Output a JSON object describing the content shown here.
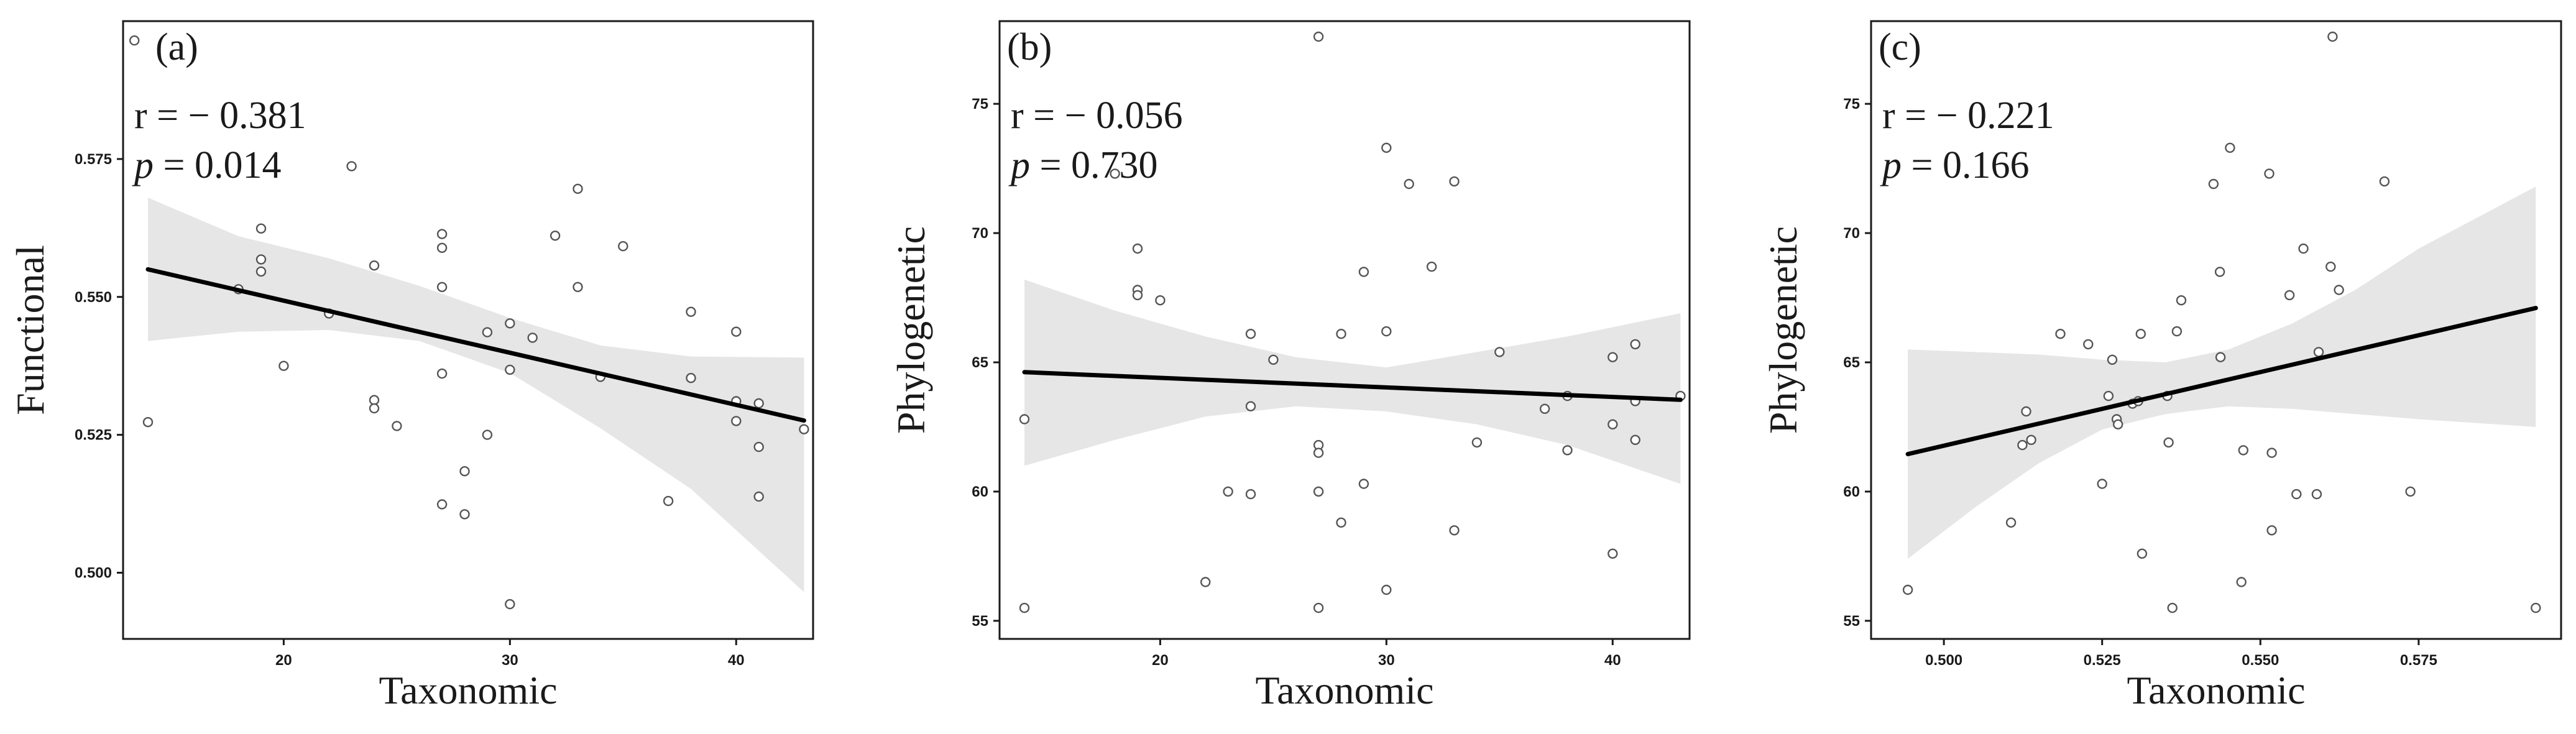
{
  "chart_data": [
    {
      "type": "scatter",
      "panel_label": "(a)",
      "xlabel": "Taxonomic",
      "ylabel": "Functional",
      "xlim": [
        12.9,
        43.4
      ],
      "ylim": [
        0.488,
        0.6
      ],
      "xticks": [
        20,
        30,
        40
      ],
      "xtick_labels": [
        "20",
        "30",
        "40"
      ],
      "yticks": [
        0.5,
        0.525,
        0.55,
        0.575
      ],
      "ytick_labels": [
        "0.500",
        "0.525",
        "0.550",
        "0.575"
      ],
      "stat_r_text": "r = − 0.381",
      "stat_p_symbol": "p",
      "stat_p_value": " = 0.014",
      "points": [
        [
          13.4,
          0.5965
        ],
        [
          14,
          0.5273
        ],
        [
          18,
          0.5514
        ],
        [
          19,
          0.5624
        ],
        [
          19,
          0.5568
        ],
        [
          19,
          0.5546
        ],
        [
          20,
          0.5375
        ],
        [
          22,
          0.547
        ],
        [
          23,
          0.5737
        ],
        [
          24,
          0.5557
        ],
        [
          24,
          0.5313
        ],
        [
          24,
          0.5298
        ],
        [
          25,
          0.5266
        ],
        [
          27,
          0.5614
        ],
        [
          27,
          0.5589
        ],
        [
          27,
          0.5518
        ],
        [
          27,
          0.5361
        ],
        [
          27,
          0.5124
        ],
        [
          28,
          0.5184
        ],
        [
          28,
          0.5106
        ],
        [
          29,
          0.5436
        ],
        [
          29,
          0.525
        ],
        [
          30,
          0.5452
        ],
        [
          30,
          0.5368
        ],
        [
          30,
          0.4943
        ],
        [
          31,
          0.5426
        ],
        [
          32,
          0.5611
        ],
        [
          33,
          0.5696
        ],
        [
          33,
          0.5518
        ],
        [
          34,
          0.5355
        ],
        [
          35,
          0.5592
        ],
        [
          37,
          0.513
        ],
        [
          38,
          0.5473
        ],
        [
          38,
          0.5353
        ],
        [
          40,
          0.5437
        ],
        [
          40,
          0.5311
        ],
        [
          40,
          0.5275
        ],
        [
          41,
          0.5307
        ],
        [
          41,
          0.5228
        ],
        [
          41,
          0.5138
        ],
        [
          43,
          0.526
        ]
      ],
      "fit": {
        "x": [
          14,
          43
        ],
        "y": [
          0.555,
          0.5276
        ]
      },
      "ci_band": {
        "x": [
          14,
          18,
          22,
          26,
          30,
          34,
          38,
          43
        ],
        "lower": [
          0.542,
          0.5437,
          0.544,
          0.542,
          0.5362,
          0.5262,
          0.5152,
          0.4965
        ],
        "upper": [
          0.568,
          0.561,
          0.557,
          0.552,
          0.5462,
          0.5412,
          0.5392,
          0.539
        ]
      }
    },
    {
      "type": "scatter",
      "panel_label": "(b)",
      "xlabel": "Taxonomic",
      "ylabel": "Phylogenetic",
      "xlim": [
        12.9,
        43.4
      ],
      "ylim": [
        54.3,
        78.2
      ],
      "xticks": [
        20,
        30,
        40
      ],
      "xtick_labels": [
        "20",
        "30",
        "40"
      ],
      "yticks": [
        55,
        60,
        65,
        70,
        75
      ],
      "ytick_labels": [
        "55",
        "60",
        "65",
        "70",
        "75"
      ],
      "stat_r_text": "r = − 0.056",
      "stat_p_symbol": "p",
      "stat_p_value": " = 0.730",
      "points": [
        [
          14,
          62.8
        ],
        [
          14,
          55.5
        ],
        [
          18,
          72.3
        ],
        [
          19,
          69.4
        ],
        [
          19,
          67.8
        ],
        [
          19,
          67.6
        ],
        [
          20,
          67.4
        ],
        [
          22,
          56.5
        ],
        [
          23,
          60.0
        ],
        [
          24,
          66.1
        ],
        [
          24,
          63.3
        ],
        [
          24,
          59.9
        ],
        [
          25,
          65.1
        ],
        [
          27,
          77.6
        ],
        [
          27,
          61.8
        ],
        [
          27,
          61.5
        ],
        [
          27,
          60.0
        ],
        [
          27,
          55.5
        ],
        [
          28,
          66.1
        ],
        [
          28,
          58.8
        ],
        [
          29,
          68.5
        ],
        [
          29,
          60.3
        ],
        [
          30,
          73.3
        ],
        [
          30,
          66.2
        ],
        [
          30,
          56.2
        ],
        [
          31,
          71.9
        ],
        [
          32,
          68.7
        ],
        [
          33,
          72.0
        ],
        [
          33,
          58.5
        ],
        [
          34,
          61.9
        ],
        [
          35,
          65.4
        ],
        [
          37,
          63.2
        ],
        [
          38,
          63.7
        ],
        [
          38,
          61.6
        ],
        [
          40,
          65.2
        ],
        [
          40,
          62.6
        ],
        [
          40,
          57.6
        ],
        [
          41,
          65.7
        ],
        [
          41,
          63.5
        ],
        [
          41,
          62.0
        ],
        [
          43,
          63.7
        ]
      ],
      "fit": {
        "x": [
          14,
          43
        ],
        "y": [
          64.62,
          63.55
        ]
      },
      "ci_band": {
        "x": [
          14,
          18,
          22,
          26,
          30,
          34,
          38,
          43
        ],
        "lower": [
          61.0,
          62.0,
          62.9,
          63.3,
          63.1,
          62.6,
          61.8,
          60.3
        ],
        "upper": [
          68.2,
          67.0,
          66.0,
          65.2,
          64.8,
          65.4,
          66.0,
          66.9
        ]
      }
    },
    {
      "type": "scatter",
      "panel_label": "(c)",
      "xlabel": "Taxonomic",
      "ylabel": "Phylogenetic",
      "xlim": [
        0.4885,
        0.5975
      ],
      "ylim": [
        54.3,
        78.2
      ],
      "xticks": [
        0.5,
        0.525,
        0.55,
        0.575
      ],
      "xtick_labels": [
        "0.500",
        "0.525",
        "0.550",
        "0.575"
      ],
      "yticks": [
        55,
        60,
        65,
        70,
        75
      ],
      "ytick_labels": [
        "55",
        "60",
        "65",
        "70",
        "75"
      ],
      "stat_r_text": "r = − 0.221",
      "stat_p_symbol": "p",
      "stat_p_value": " = 0.166",
      "points": [
        [
          0.4943,
          56.2
        ],
        [
          0.5106,
          58.8
        ],
        [
          0.5124,
          61.8
        ],
        [
          0.513,
          63.1
        ],
        [
          0.5138,
          62.0
        ],
        [
          0.5184,
          66.1
        ],
        [
          0.5228,
          65.7
        ],
        [
          0.525,
          60.3
        ],
        [
          0.526,
          63.7
        ],
        [
          0.5266,
          65.1
        ],
        [
          0.5273,
          62.8
        ],
        [
          0.5275,
          62.6
        ],
        [
          0.5298,
          63.4
        ],
        [
          0.5307,
          63.5
        ],
        [
          0.5311,
          66.1
        ],
        [
          0.5313,
          57.6
        ],
        [
          0.5353,
          63.7
        ],
        [
          0.5355,
          61.9
        ],
        [
          0.5361,
          55.5
        ],
        [
          0.5368,
          66.2
        ],
        [
          0.5375,
          67.4
        ],
        [
          0.5426,
          71.9
        ],
        [
          0.5436,
          68.5
        ],
        [
          0.5437,
          65.2
        ],
        [
          0.5452,
          73.3
        ],
        [
          0.547,
          56.5
        ],
        [
          0.5473,
          61.6
        ],
        [
          0.5514,
          72.3
        ],
        [
          0.5518,
          61.5
        ],
        [
          0.5518,
          58.5
        ],
        [
          0.5546,
          67.6
        ],
        [
          0.5557,
          59.9
        ],
        [
          0.5568,
          69.4
        ],
        [
          0.5589,
          59.9
        ],
        [
          0.5592,
          65.4
        ],
        [
          0.5611,
          68.7
        ],
        [
          0.5614,
          77.6
        ],
        [
          0.5624,
          67.8
        ],
        [
          0.5696,
          72.0
        ],
        [
          0.5737,
          60.0
        ],
        [
          0.5935,
          55.5
        ]
      ],
      "fit": {
        "x": [
          0.4943,
          0.5935
        ],
        "y": [
          61.45,
          67.1
        ]
      },
      "ci_band": {
        "x": [
          0.4943,
          0.505,
          0.515,
          0.525,
          0.535,
          0.545,
          0.555,
          0.565,
          0.575,
          0.5935
        ],
        "lower": [
          57.4,
          59.4,
          61.1,
          62.4,
          63.0,
          63.3,
          63.2,
          63.0,
          62.8,
          62.5
        ],
        "upper": [
          65.5,
          65.4,
          65.3,
          65.1,
          65.0,
          65.5,
          66.5,
          67.8,
          69.4,
          71.8
        ]
      }
    }
  ]
}
